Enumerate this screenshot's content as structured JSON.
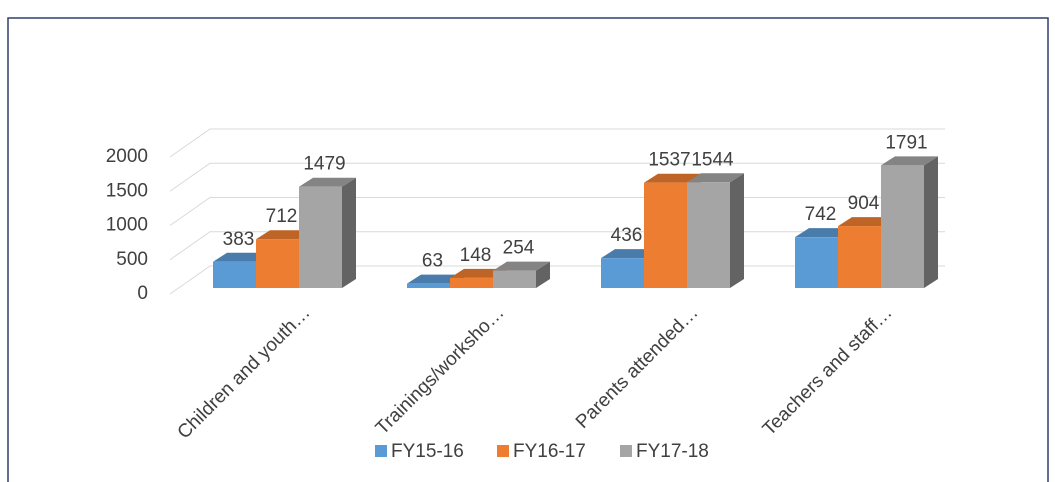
{
  "chart_data": {
    "type": "bar3d",
    "categories": [
      "Children and youth…",
      "Trainings/worksho…",
      "Parents attended…",
      "Teachers and staff…"
    ],
    "series": [
      {
        "name": "FY15-16",
        "color": "#5b9bd5",
        "values": [
          383,
          63,
          436,
          742
        ]
      },
      {
        "name": "FY16-17",
        "color": "#ed7d31",
        "values": [
          712,
          148,
          1537,
          904
        ]
      },
      {
        "name": "FY17-18",
        "color": "#a5a5a5",
        "values": [
          1479,
          254,
          1544,
          1791
        ]
      }
    ],
    "ylim": [
      0,
      2000
    ],
    "yticks": [
      0,
      500,
      1000,
      1500,
      2000
    ],
    "grid": true,
    "legend": "bottom"
  }
}
